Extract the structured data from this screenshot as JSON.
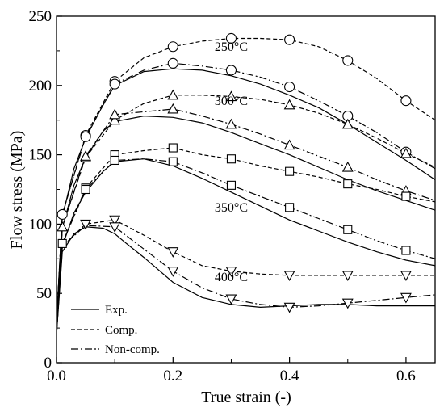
{
  "chart_data": {
    "type": "line",
    "xlabel": "True strain (-)",
    "ylabel": "Flow stress (MPa)",
    "xlim": [
      0,
      0.65
    ],
    "ylim": [
      0,
      250
    ],
    "xticks": [
      "0.0",
      "0.2",
      "0.4",
      "0.6"
    ],
    "xtick_values": [
      0,
      0.2,
      0.4,
      0.6
    ],
    "yticks": [
      "0",
      "50",
      "100",
      "150",
      "200",
      "250"
    ],
    "ytick_values": [
      0,
      50,
      100,
      150,
      200,
      250
    ],
    "grid": false,
    "legend": {
      "placement": "bottom-left",
      "entries": [
        {
          "label": "Exp.",
          "style": "solid"
        },
        {
          "label": "Comp.",
          "style": "dashed"
        },
        {
          "label": "Non-comp.",
          "style": "dashdot"
        }
      ]
    },
    "annotations": [
      {
        "text": "250°C",
        "x": 0.3,
        "y": 225
      },
      {
        "text": "300°C",
        "x": 0.3,
        "y": 186
      },
      {
        "text": "350°C",
        "x": 0.3,
        "y": 109
      },
      {
        "text": "400°C",
        "x": 0.3,
        "y": 59
      }
    ],
    "series": [
      {
        "temperature": "250°C",
        "style": "solid",
        "marker": "none",
        "x": [
          0,
          0.01,
          0.03,
          0.05,
          0.08,
          0.1,
          0.15,
          0.2,
          0.25,
          0.3,
          0.35,
          0.4,
          0.45,
          0.5,
          0.55,
          0.6,
          0.65
        ],
        "y": [
          30,
          105,
          140,
          162,
          186,
          200,
          210,
          212,
          211,
          207,
          201,
          193,
          184,
          172,
          159,
          146,
          132
        ]
      },
      {
        "temperature": "250°C",
        "style": "dashed",
        "marker": "circle",
        "x": [
          0,
          0.01,
          0.05,
          0.1,
          0.15,
          0.2,
          0.25,
          0.3,
          0.35,
          0.4,
          0.45,
          0.5,
          0.55,
          0.6,
          0.65
        ],
        "y": [
          30,
          107,
          164,
          203,
          220,
          228,
          232,
          234,
          234,
          233,
          228,
          218,
          205,
          189,
          175
        ]
      },
      {
        "temperature": "250°C",
        "style": "dashdot",
        "marker": "circle",
        "x": [
          0,
          0.01,
          0.05,
          0.1,
          0.15,
          0.2,
          0.25,
          0.3,
          0.35,
          0.4,
          0.45,
          0.5,
          0.55,
          0.6,
          0.65
        ],
        "y": [
          30,
          107,
          163,
          201,
          211,
          216,
          214,
          211,
          206,
          199,
          189,
          178,
          166,
          152,
          140
        ]
      },
      {
        "temperature": "300°C",
        "style": "solid",
        "marker": "none",
        "x": [
          0,
          0.01,
          0.03,
          0.05,
          0.08,
          0.1,
          0.15,
          0.2,
          0.25,
          0.3,
          0.35,
          0.4,
          0.45,
          0.5,
          0.55,
          0.6,
          0.65
        ],
        "y": [
          25,
          97,
          128,
          148,
          167,
          174,
          178,
          177,
          173,
          166,
          158,
          150,
          141,
          132,
          124,
          117,
          110
        ]
      },
      {
        "temperature": "300°C",
        "style": "dashed",
        "marker": "triangle",
        "x": [
          0,
          0.01,
          0.05,
          0.1,
          0.15,
          0.2,
          0.25,
          0.3,
          0.35,
          0.4,
          0.45,
          0.5,
          0.55,
          0.6,
          0.65
        ],
        "y": [
          25,
          98,
          148,
          175,
          187,
          193,
          193,
          192,
          190,
          186,
          180,
          172,
          162,
          151,
          141
        ]
      },
      {
        "temperature": "300°C",
        "style": "dashdot",
        "marker": "triangle",
        "x": [
          0,
          0.01,
          0.05,
          0.1,
          0.15,
          0.2,
          0.25,
          0.3,
          0.35,
          0.4,
          0.45,
          0.5,
          0.55,
          0.6,
          0.65
        ],
        "y": [
          25,
          98,
          149,
          179,
          181,
          183,
          178,
          172,
          165,
          157,
          149,
          141,
          132,
          124,
          117
        ]
      },
      {
        "temperature": "350°C",
        "style": "solid",
        "marker": "none",
        "x": [
          0,
          0.01,
          0.03,
          0.05,
          0.08,
          0.1,
          0.15,
          0.2,
          0.25,
          0.3,
          0.35,
          0.4,
          0.45,
          0.5,
          0.55,
          0.6,
          0.65
        ],
        "y": [
          22,
          84,
          108,
          123,
          138,
          145,
          147,
          142,
          133,
          123,
          113,
          103,
          95,
          87,
          80,
          74,
          70
        ]
      },
      {
        "temperature": "350°C",
        "style": "dashed",
        "marker": "square",
        "x": [
          0,
          0.01,
          0.05,
          0.1,
          0.15,
          0.2,
          0.25,
          0.3,
          0.35,
          0.4,
          0.45,
          0.5,
          0.55,
          0.6,
          0.65
        ],
        "y": [
          22,
          86,
          126,
          150,
          153,
          155,
          150,
          147,
          142,
          138,
          134,
          129,
          125,
          120,
          116
        ]
      },
      {
        "temperature": "350°C",
        "style": "dashdot",
        "marker": "square",
        "x": [
          0,
          0.01,
          0.05,
          0.1,
          0.15,
          0.2,
          0.25,
          0.3,
          0.35,
          0.4,
          0.45,
          0.5,
          0.55,
          0.6,
          0.65
        ],
        "y": [
          22,
          86,
          125,
          146,
          147,
          145,
          137,
          128,
          120,
          112,
          104,
          96,
          88,
          81,
          75
        ]
      },
      {
        "temperature": "400°C",
        "style": "solid",
        "marker": "none",
        "x": [
          0,
          0.01,
          0.03,
          0.05,
          0.08,
          0.1,
          0.12,
          0.15,
          0.2,
          0.25,
          0.3,
          0.35,
          0.4,
          0.45,
          0.5,
          0.55,
          0.6,
          0.65
        ],
        "y": [
          20,
          80,
          93,
          98,
          97,
          93,
          86,
          76,
          58,
          47,
          42,
          40,
          41,
          42,
          42,
          41,
          41,
          41
        ]
      },
      {
        "temperature": "400°C",
        "style": "dashed",
        "marker": "down-triangle",
        "x": [
          0,
          0.01,
          0.05,
          0.1,
          0.15,
          0.2,
          0.25,
          0.3,
          0.35,
          0.4,
          0.45,
          0.5,
          0.55,
          0.6,
          0.65
        ],
        "y": [
          20,
          84,
          100,
          103,
          92,
          80,
          70,
          66,
          64,
          63,
          63,
          63,
          63,
          63,
          63
        ]
      },
      {
        "temperature": "400°C",
        "style": "dashdot",
        "marker": "down-triangle",
        "x": [
          0,
          0.01,
          0.05,
          0.1,
          0.15,
          0.2,
          0.25,
          0.3,
          0.35,
          0.4,
          0.45,
          0.5,
          0.55,
          0.6,
          0.65
        ],
        "y": [
          20,
          84,
          99,
          98,
          82,
          66,
          54,
          46,
          42,
          40,
          41,
          43,
          45,
          47,
          49
        ]
      }
    ],
    "marker_points": [
      {
        "marker": "circle",
        "x": [
          0.01,
          0.05,
          0.1,
          0.2,
          0.3,
          0.4,
          0.5,
          0.6
        ],
        "y": [
          107,
          164,
          203,
          228,
          234,
          233,
          218,
          189
        ]
      },
      {
        "marker": "circle",
        "x": [
          0.05,
          0.1,
          0.2,
          0.3,
          0.4,
          0.5,
          0.6
        ],
        "y": [
          163,
          201,
          216,
          211,
          199,
          178,
          152
        ]
      },
      {
        "marker": "triangle",
        "x": [
          0.01,
          0.05,
          0.1,
          0.2,
          0.3,
          0.4,
          0.5,
          0.6
        ],
        "y": [
          98,
          148,
          175,
          193,
          192,
          186,
          172,
          151
        ]
      },
      {
        "marker": "triangle",
        "x": [
          0.05,
          0.1,
          0.2,
          0.3,
          0.4,
          0.5,
          0.6
        ],
        "y": [
          149,
          179,
          183,
          172,
          157,
          141,
          124
        ]
      },
      {
        "marker": "square",
        "x": [
          0.01,
          0.05,
          0.1,
          0.2,
          0.3,
          0.4,
          0.5,
          0.6
        ],
        "y": [
          86,
          126,
          150,
          155,
          147,
          138,
          129,
          120
        ]
      },
      {
        "marker": "square",
        "x": [
          0.05,
          0.1,
          0.2,
          0.3,
          0.4,
          0.5,
          0.6
        ],
        "y": [
          125,
          146,
          145,
          128,
          112,
          96,
          81
        ]
      },
      {
        "marker": "down-triangle",
        "x": [
          0.05,
          0.1,
          0.2,
          0.3,
          0.4,
          0.5,
          0.6
        ],
        "y": [
          100,
          103,
          80,
          66,
          63,
          63,
          63
        ]
      },
      {
        "marker": "down-triangle",
        "x": [
          0.1,
          0.2,
          0.3,
          0.4,
          0.5,
          0.6
        ],
        "y": [
          98,
          66,
          46,
          40,
          43,
          47
        ]
      }
    ]
  }
}
